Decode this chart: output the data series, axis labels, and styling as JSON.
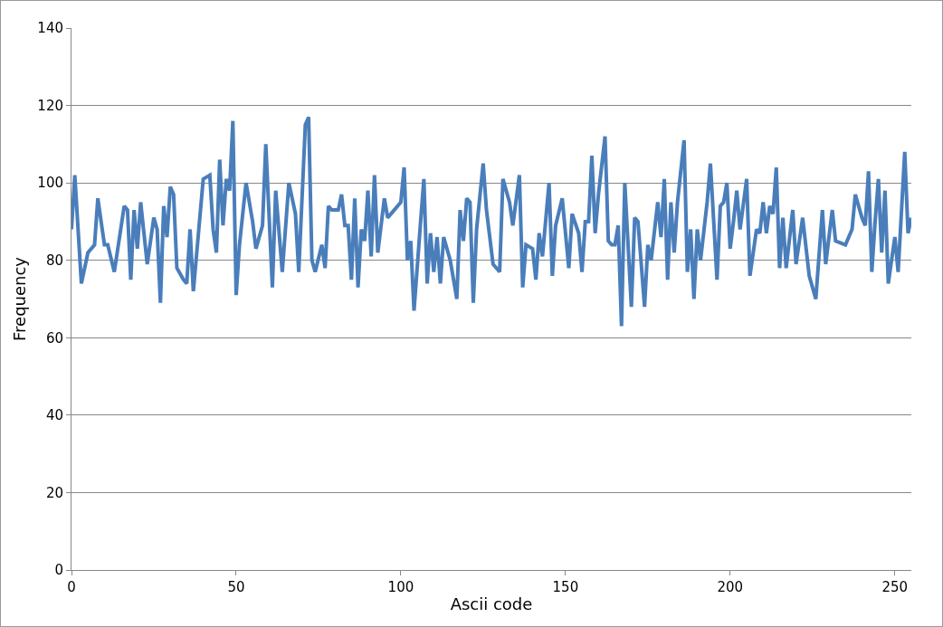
{
  "chart_data": {
    "type": "line",
    "xlabel": "Ascii code",
    "ylabel": "Frequency",
    "x": [
      0,
      1,
      3,
      5,
      7,
      8,
      10,
      11,
      13,
      16,
      17,
      18,
      19,
      20,
      21,
      23,
      25,
      26,
      27,
      28,
      29,
      30,
      31,
      32,
      34,
      35,
      36,
      37,
      40,
      42,
      43,
      44,
      45,
      46,
      47,
      48,
      49,
      50,
      51,
      53,
      55,
      56,
      58,
      59,
      61,
      62,
      64,
      66,
      68,
      69,
      71,
      72,
      73,
      74,
      76,
      77,
      78,
      79,
      80,
      81,
      82,
      83,
      84,
      85,
      86,
      87,
      88,
      89,
      90,
      91,
      92,
      93,
      95,
      96,
      98,
      100,
      101,
      102,
      103,
      104,
      106,
      107,
      108,
      109,
      110,
      111,
      112,
      113,
      115,
      117,
      118,
      119,
      120,
      121,
      122,
      123,
      125,
      126,
      128,
      130,
      131,
      133,
      134,
      136,
      137,
      138,
      140,
      141,
      142,
      143,
      145,
      146,
      147,
      149,
      151,
      152,
      154,
      155,
      156,
      157,
      158,
      159,
      160,
      162,
      163,
      164,
      165,
      166,
      167,
      168,
      170,
      171,
      172,
      174,
      175,
      176,
      178,
      179,
      180,
      181,
      182,
      183,
      184,
      186,
      187,
      188,
      189,
      190,
      191,
      193,
      194,
      196,
      197,
      198,
      199,
      200,
      201,
      202,
      203,
      205,
      206,
      208,
      209,
      210,
      211,
      212,
      213,
      214,
      215,
      216,
      217,
      219,
      220,
      222,
      224,
      226,
      228,
      229,
      231,
      232,
      235,
      237,
      238,
      240,
      241,
      242,
      243,
      244,
      245,
      246,
      247,
      248,
      250,
      251,
      253,
      254,
      255
    ],
    "series": [
      {
        "color": "#4a7ebb",
        "values": [
          88,
          102,
          74,
          82,
          84,
          96,
          84,
          84,
          77,
          94,
          93,
          75,
          93,
          83,
          95,
          79,
          91,
          88,
          69,
          94,
          86,
          99,
          97,
          78,
          75,
          74,
          88,
          72,
          101,
          102,
          88,
          82,
          106,
          89,
          101,
          98,
          116,
          71,
          84,
          100,
          90,
          83,
          89,
          110,
          73,
          98,
          77,
          100,
          92,
          77,
          115,
          117,
          80,
          77,
          84,
          78,
          94,
          93,
          93,
          93,
          97,
          89,
          89,
          75,
          96,
          73,
          88,
          85,
          98,
          81,
          102,
          82,
          96,
          91,
          93,
          95,
          104,
          80,
          85,
          67,
          90,
          101,
          74,
          87,
          77,
          86,
          74,
          86,
          80,
          70,
          93,
          85,
          96,
          95,
          69,
          88,
          105,
          93,
          79,
          77,
          101,
          95,
          89,
          102,
          73,
          84,
          83,
          75,
          87,
          81,
          100,
          76,
          89,
          96,
          78,
          92,
          87,
          77,
          90,
          90,
          107,
          87,
          97,
          112,
          85,
          84,
          84,
          89,
          63,
          100,
          68,
          91,
          90,
          68,
          84,
          80,
          95,
          86,
          101,
          75,
          95,
          82,
          95,
          111,
          77,
          88,
          70,
          88,
          80,
          95,
          105,
          75,
          94,
          95,
          100,
          83,
          90,
          98,
          88,
          101,
          76,
          88,
          87,
          95,
          87,
          94,
          92,
          104,
          78,
          91,
          78,
          93,
          79,
          91,
          76,
          70,
          93,
          79,
          93,
          85,
          84,
          88,
          97,
          91,
          89,
          103,
          77,
          90,
          101,
          82,
          98,
          74,
          86,
          77,
          108,
          87,
          91
        ]
      }
    ],
    "xlim": [
      0,
      255
    ],
    "xticks": [
      0,
      50,
      100,
      150,
      200,
      250
    ],
    "ylim": [
      0,
      140
    ],
    "yticks": [
      0,
      20,
      40,
      60,
      80,
      100,
      120,
      140
    ],
    "grid": "y",
    "marker": "none",
    "line_style": "solid"
  }
}
